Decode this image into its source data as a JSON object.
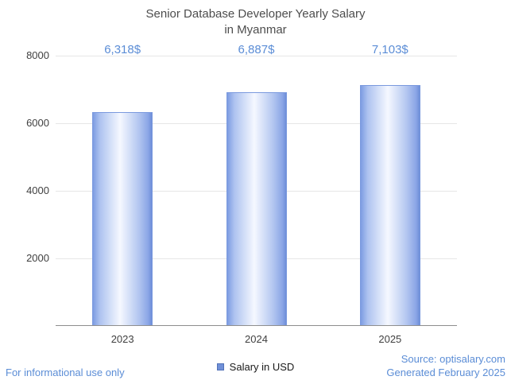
{
  "chart_data": {
    "type": "bar",
    "title": "Senior Database Developer Yearly Salary in Myanmar",
    "title_lines": [
      "Senior Database Developer Yearly Salary",
      "in Myanmar"
    ],
    "categories": [
      "2023",
      "2024",
      "2025"
    ],
    "values": [
      6318,
      6887,
      7103
    ],
    "value_labels": [
      "6,318$",
      "6,887$",
      "7,103$"
    ],
    "series_name": "Salary in USD",
    "xlabel": "",
    "ylabel": "",
    "ylim": [
      0,
      8000
    ],
    "yticks": [
      2000,
      4000,
      6000,
      8000
    ],
    "grid": true,
    "legend_position": "bottom",
    "bar_color_edge": "#7d9ce2",
    "bar_color_center": "#f5f8ff"
  },
  "legend": {
    "label": "Salary in USD"
  },
  "footer": {
    "disclaimer": "For informational use only",
    "source": "Source: optisalary.com",
    "generated": "Generated February 2025"
  },
  "colors": {
    "accent_blue": "#5b8dd6",
    "title_gray": "#4d4d4d",
    "gridline": "#e6e6e6"
  }
}
